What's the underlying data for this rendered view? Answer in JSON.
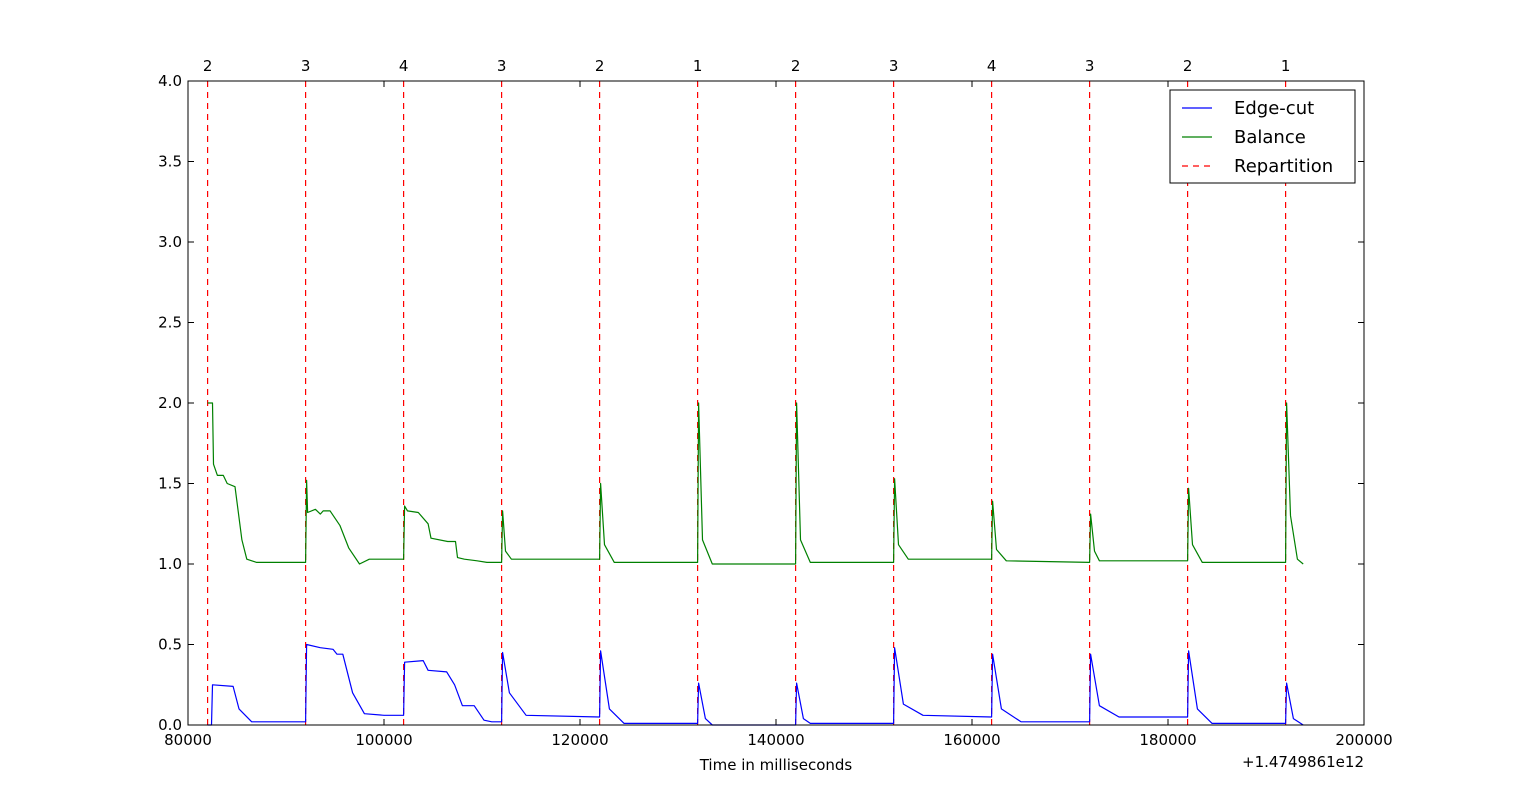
{
  "chart_data": {
    "type": "line",
    "title": "",
    "xlabel": "Time in milliseconds",
    "ylabel": "",
    "x_offset_label": "+1.4749861e12",
    "xlim": [
      80000,
      200000
    ],
    "ylim": [
      0.0,
      4.0
    ],
    "x_ticks": [
      80000,
      100000,
      120000,
      140000,
      160000,
      180000,
      200000
    ],
    "x_tick_labels": [
      "80000",
      "100000",
      "120000",
      "140000",
      "160000",
      "180000",
      "200000"
    ],
    "y_ticks": [
      0.0,
      0.5,
      1.0,
      1.5,
      2.0,
      2.5,
      3.0,
      3.5,
      4.0
    ],
    "y_tick_labels": [
      "0.0",
      "0.5",
      "1.0",
      "1.5",
      "2.0",
      "2.5",
      "3.0",
      "3.5",
      "4.0"
    ],
    "grid": false,
    "legend_position": "top-right",
    "colors": {
      "edge_cut": "#0000ff",
      "balance": "#008000",
      "repartition": "#ff0000"
    },
    "repartitions": {
      "name": "Repartition",
      "x": [
        82000,
        92000,
        102000,
        112000,
        122000,
        132000,
        142000,
        152000,
        162000,
        172000,
        182000,
        192000
      ],
      "labels": [
        "2",
        "3",
        "4",
        "3",
        "2",
        "1",
        "2",
        "3",
        "4",
        "3",
        "2",
        "1"
      ]
    },
    "series": [
      {
        "name": "Edge-cut",
        "x": [
          82000,
          82400,
          82500,
          84600,
          85200,
          86500,
          87000,
          92000,
          92100,
          93500,
          94800,
          95200,
          95800,
          96800,
          98000,
          100000,
          102000,
          102100,
          104000,
          104500,
          106400,
          107200,
          108000,
          109200,
          110200,
          111000,
          112000,
          112100,
          112800,
          114500,
          122000,
          122100,
          123000,
          124500,
          132000,
          132100,
          132800,
          133500,
          142000,
          142100,
          142800,
          143500,
          152000,
          152100,
          153000,
          155000,
          162000,
          162100,
          163000,
          165000,
          172000,
          172100,
          173000,
          175000,
          182000,
          182100,
          183000,
          184500,
          192000,
          192100,
          192800,
          193800
        ],
        "values": [
          0.0,
          0.0,
          0.25,
          0.24,
          0.1,
          0.02,
          0.02,
          0.02,
          0.5,
          0.48,
          0.47,
          0.44,
          0.44,
          0.2,
          0.07,
          0.06,
          0.06,
          0.39,
          0.4,
          0.34,
          0.33,
          0.25,
          0.12,
          0.12,
          0.03,
          0.02,
          0.02,
          0.45,
          0.2,
          0.06,
          0.05,
          0.46,
          0.1,
          0.01,
          0.01,
          0.26,
          0.04,
          0.0,
          0.0,
          0.26,
          0.04,
          0.01,
          0.01,
          0.48,
          0.13,
          0.06,
          0.05,
          0.44,
          0.1,
          0.02,
          0.02,
          0.44,
          0.12,
          0.05,
          0.05,
          0.46,
          0.1,
          0.01,
          0.01,
          0.26,
          0.04,
          0.0
        ]
      },
      {
        "name": "Balance",
        "x": [
          82000,
          82300,
          82500,
          82600,
          83000,
          83600,
          84000,
          84800,
          85500,
          86000,
          87000,
          92000,
          92100,
          92200,
          93000,
          93500,
          93800,
          94500,
          95500,
          96400,
          97500,
          98500,
          102000,
          102100,
          102400,
          103500,
          104500,
          104800,
          106500,
          107300,
          107500,
          108200,
          109500,
          110500,
          112000,
          112100,
          112400,
          113000,
          122000,
          122100,
          122500,
          123500,
          132000,
          132100,
          132500,
          133500,
          142000,
          142100,
          142500,
          143500,
          152000,
          152100,
          152500,
          153500,
          162000,
          162100,
          162500,
          163500,
          172000,
          172100,
          172500,
          173000,
          174000,
          182000,
          182100,
          182500,
          183500,
          192000,
          192100,
          192500,
          193200,
          193800
        ],
        "values": [
          2.0,
          2.0,
          2.0,
          1.62,
          1.55,
          1.55,
          1.5,
          1.48,
          1.15,
          1.03,
          1.01,
          1.01,
          1.52,
          1.32,
          1.34,
          1.31,
          1.33,
          1.33,
          1.24,
          1.1,
          1.0,
          1.03,
          1.03,
          1.36,
          1.33,
          1.32,
          1.25,
          1.16,
          1.14,
          1.14,
          1.04,
          1.03,
          1.02,
          1.01,
          1.01,
          1.33,
          1.08,
          1.03,
          1.03,
          1.5,
          1.12,
          1.01,
          1.01,
          2.0,
          1.15,
          1.0,
          1.0,
          2.0,
          1.15,
          1.01,
          1.01,
          1.53,
          1.12,
          1.03,
          1.03,
          1.39,
          1.09,
          1.02,
          1.01,
          1.31,
          1.08,
          1.02,
          1.02,
          1.02,
          1.47,
          1.12,
          1.01,
          1.01,
          2.0,
          1.3,
          1.03,
          1.0
        ]
      }
    ]
  }
}
